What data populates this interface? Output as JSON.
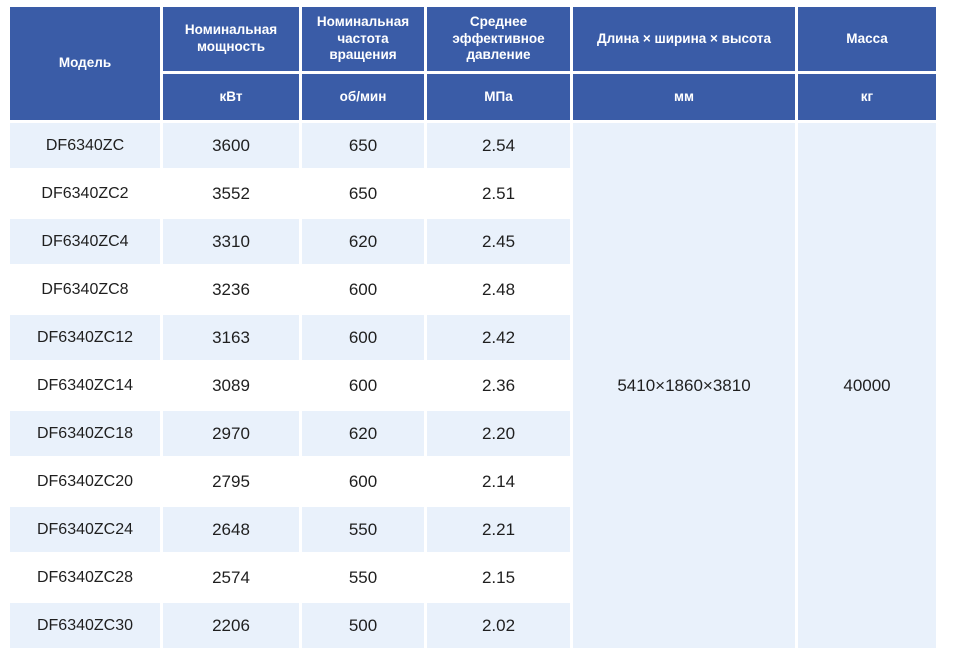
{
  "table": {
    "columns": [
      {
        "header": "Модель",
        "unit": ""
      },
      {
        "header": "Номинальная мощность",
        "unit": "кВт"
      },
      {
        "header": "Номинальная частота вращения",
        "unit": "об/мин"
      },
      {
        "header": "Среднее эффективное давление",
        "unit": "МПа"
      },
      {
        "header": "Длина × ширина × высота",
        "unit": "мм"
      },
      {
        "header": "Масса",
        "unit": "кг"
      }
    ],
    "rows": [
      {
        "model": "DF6340ZC",
        "power": "3600",
        "speed": "650",
        "pressure": "2.54"
      },
      {
        "model": "DF6340ZC2",
        "power": "3552",
        "speed": "650",
        "pressure": "2.51"
      },
      {
        "model": "DF6340ZC4",
        "power": "3310",
        "speed": "620",
        "pressure": "2.45"
      },
      {
        "model": "DF6340ZC8",
        "power": "3236",
        "speed": "600",
        "pressure": "2.48"
      },
      {
        "model": "DF6340ZC12",
        "power": "3163",
        "speed": "600",
        "pressure": "2.42"
      },
      {
        "model": "DF6340ZC14",
        "power": "3089",
        "speed": "600",
        "pressure": "2.36"
      },
      {
        "model": "DF6340ZC18",
        "power": "2970",
        "speed": "620",
        "pressure": "2.20"
      },
      {
        "model": "DF6340ZC20",
        "power": "2795",
        "speed": "600",
        "pressure": "2.14"
      },
      {
        "model": "DF6340ZC24",
        "power": "2648",
        "speed": "550",
        "pressure": "2.21"
      },
      {
        "model": "DF6340ZC28",
        "power": "2574",
        "speed": "550",
        "pressure": "2.15"
      },
      {
        "model": "DF6340ZC30",
        "power": "2206",
        "speed": "500",
        "pressure": "2.02"
      }
    ],
    "merged": {
      "dimensions": "5410×1860×3810",
      "mass": "40000"
    }
  },
  "colors": {
    "header_bg": "#3A5CA7",
    "header_text": "#FFFFFF",
    "row_bg": "#FFFFFF",
    "row_alt_bg": "#E9F1FB",
    "body_text": "#1F1F1F"
  }
}
